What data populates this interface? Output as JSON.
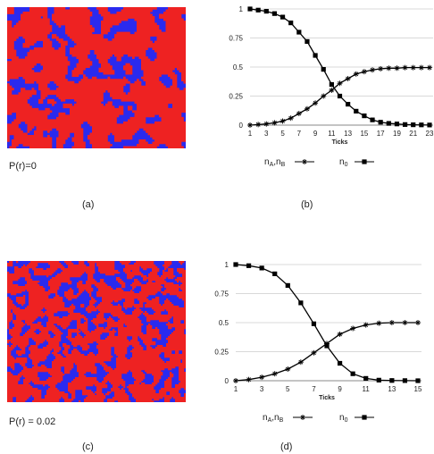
{
  "panels": [
    {
      "label": "(a)",
      "caption": "P(r)=0"
    },
    {
      "label": "(b)"
    },
    {
      "label": "(c)",
      "caption": "P(r) = 0.02"
    },
    {
      "label": "(d)"
    }
  ],
  "colors": {
    "red": "#ee2222",
    "blue": "#2a2aee",
    "line": "#000000"
  },
  "chart_data": [
    {
      "type": "line",
      "xlabel": "Ticks",
      "x": [
        1,
        2,
        3,
        4,
        5,
        6,
        7,
        8,
        9,
        10,
        11,
        12,
        13,
        14,
        15,
        16,
        17,
        18,
        19,
        20,
        21,
        22,
        23
      ],
      "xticks": [
        "1",
        "3",
        "5",
        "7",
        "9",
        "11",
        "13",
        "15",
        "17",
        "19",
        "21",
        "23"
      ],
      "yticks": [
        "0",
        "0.25",
        "0.5",
        "0.75",
        "1"
      ],
      "ylim": [
        0,
        1
      ],
      "grid": "horizontal",
      "legend": [
        {
          "text_main": "n",
          "sub1": "A",
          "sep": ",",
          "text_main2": "n",
          "sub2": "B",
          "marker": "star"
        },
        {
          "text_main": "n",
          "sub1": "0",
          "marker": "square"
        }
      ],
      "series": [
        {
          "marker": "star",
          "values": [
            0.0,
            0.005,
            0.01,
            0.02,
            0.035,
            0.06,
            0.1,
            0.14,
            0.19,
            0.25,
            0.3,
            0.36,
            0.4,
            0.44,
            0.46,
            0.475,
            0.485,
            0.49,
            0.49,
            0.495,
            0.495,
            0.495,
            0.495
          ]
        },
        {
          "marker": "square",
          "values": [
            1.0,
            0.99,
            0.98,
            0.96,
            0.93,
            0.88,
            0.8,
            0.72,
            0.6,
            0.48,
            0.35,
            0.25,
            0.18,
            0.12,
            0.08,
            0.045,
            0.025,
            0.015,
            0.01,
            0.005,
            0.003,
            0.002,
            0.001
          ]
        }
      ]
    },
    {
      "type": "line",
      "xlabel": "Ticks",
      "x": [
        1,
        2,
        3,
        4,
        5,
        6,
        7,
        8,
        9,
        10,
        11,
        12,
        13,
        14,
        15
      ],
      "xticks": [
        "1",
        "3",
        "5",
        "7",
        "9",
        "11",
        "13",
        "15"
      ],
      "yticks": [
        "0",
        "0.25",
        "0.5",
        "0.75",
        "1"
      ],
      "ylim": [
        0,
        1
      ],
      "grid": "horizontal",
      "legend": [
        {
          "text_main": "n",
          "sub1": "A",
          "sep": ",",
          "text_main2": "n",
          "sub2": "B",
          "marker": "star"
        },
        {
          "text_main": "n",
          "sub1": "0",
          "marker": "square"
        }
      ],
      "series": [
        {
          "marker": "star",
          "values": [
            0.0,
            0.01,
            0.03,
            0.06,
            0.1,
            0.16,
            0.24,
            0.32,
            0.4,
            0.45,
            0.48,
            0.495,
            0.5,
            0.5,
            0.5
          ]
        },
        {
          "marker": "square",
          "values": [
            1.0,
            0.99,
            0.97,
            0.92,
            0.82,
            0.67,
            0.49,
            0.3,
            0.15,
            0.06,
            0.02,
            0.005,
            0.002,
            0.001,
            0.0
          ]
        }
      ]
    }
  ]
}
